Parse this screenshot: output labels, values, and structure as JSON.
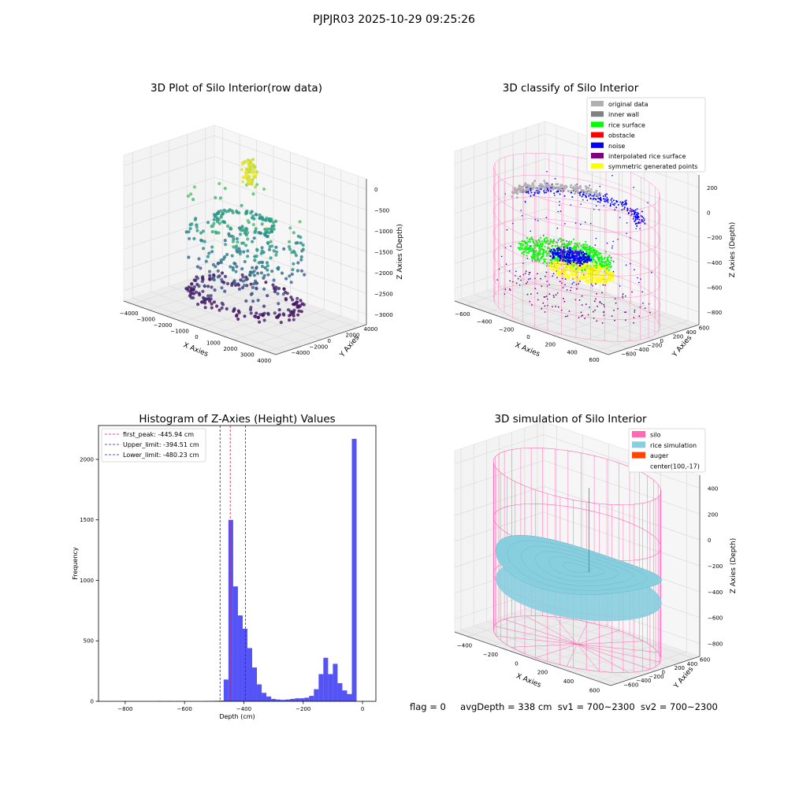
{
  "suptitle": "PJPJR03 2025-10-29 09:25:26",
  "footer": {
    "flag": "flag = 0",
    "avg_depth": "avgDepth = 338 cm",
    "sv1": "sv1 = 700~2300",
    "sv2": "sv2 = 700~2300"
  },
  "colors": {
    "hist_bar": "#4b4bf5",
    "first_peak_line": "#e8193c",
    "limit_line": "#2020d0",
    "silo": "#ff69b4",
    "rice_simulation": "#87cedf",
    "auger": "#ff4500",
    "original_data": "#b0b0b0",
    "inner_wall": "#808080",
    "rice_surface": "#00ff00",
    "obstacle": "#ff0000",
    "noise": "#0000ff",
    "interpolated_rice_surface": "#800080",
    "symmetric_generated_points": "#ffff00"
  },
  "chart_data": [
    {
      "type": "scatter",
      "title": "3D Plot of Silo Interior(row data)",
      "xlabel": "X Axies",
      "ylabel": "Y Axies",
      "zlabel": "Z Axies (Depth)",
      "x_ticks": [
        "−4000",
        "−3000",
        "−2000",
        "−1000",
        "0",
        "1000",
        "2000",
        "3000",
        "4000"
      ],
      "y_ticks": [
        "−4000",
        "−2000",
        "0",
        "2000",
        "4000"
      ],
      "z_ticks": [
        "−3000",
        "−2500",
        "−2000",
        "−1500",
        "−1000",
        "−500",
        "0"
      ],
      "xlim": [
        -4000,
        4000
      ],
      "ylim": [
        -4000,
        4000
      ],
      "zlim": [
        -3200,
        0
      ],
      "colormap": "viridis",
      "grid": true
    },
    {
      "type": "scatter",
      "title": "3D classify of Silo Interior",
      "xlabel": "X Axies",
      "ylabel": "Y Axies",
      "zlabel": "Z Axies (Depth)",
      "x_ticks": [
        "−600",
        "−400",
        "−200",
        "0",
        "200",
        "400",
        "600"
      ],
      "y_ticks": [
        "−600",
        "−400",
        "−200",
        "0",
        "200",
        "400",
        "600"
      ],
      "z_ticks": [
        "−800",
        "−600",
        "−400",
        "−200",
        "0",
        "200"
      ],
      "xlim": [
        -600,
        600
      ],
      "ylim": [
        -600,
        600
      ],
      "zlim": [
        -900,
        300
      ],
      "legend": [
        {
          "label": "original data",
          "color": "#b0b0b0"
        },
        {
          "label": "inner wall",
          "color": "#808080"
        },
        {
          "label": "rice surface",
          "color": "#00ff00"
        },
        {
          "label": "obstacle",
          "color": "#ff0000"
        },
        {
          "label": "noise",
          "color": "#0000ff"
        },
        {
          "label": "interpolated rice surface",
          "color": "#800080"
        },
        {
          "label": "symmetric generated points",
          "color": "#ffff00"
        }
      ],
      "legend_position": "top-right",
      "grid": true
    },
    {
      "type": "bar",
      "title": "Histogram of Z-Axies (Height) Values",
      "xlabel": "Depth (cm)",
      "ylabel": "Frequency",
      "xlim": [
        -890,
        45
      ],
      "ylim": [
        0,
        2280
      ],
      "x_ticks": [
        -800,
        -600,
        -400,
        -200,
        0
      ],
      "x_tick_labels": [
        "−800",
        "−600",
        "−400",
        "−200",
        "0"
      ],
      "y_ticks": [
        0,
        500,
        1000,
        1500,
        2000
      ],
      "bin_width": 16,
      "bins": [
        {
          "x": -692,
          "v": 3
        },
        {
          "x": -660,
          "v": 2
        },
        {
          "x": -628,
          "v": 2
        },
        {
          "x": -532,
          "v": 2
        },
        {
          "x": -516,
          "v": 3
        },
        {
          "x": -500,
          "v": 4
        },
        {
          "x": -484,
          "v": 6
        },
        {
          "x": -468,
          "v": 180
        },
        {
          "x": -452,
          "v": 1500
        },
        {
          "x": -436,
          "v": 950
        },
        {
          "x": -420,
          "v": 710
        },
        {
          "x": -404,
          "v": 600
        },
        {
          "x": -388,
          "v": 440
        },
        {
          "x": -372,
          "v": 280
        },
        {
          "x": -356,
          "v": 140
        },
        {
          "x": -340,
          "v": 70
        },
        {
          "x": -324,
          "v": 40
        },
        {
          "x": -308,
          "v": 20
        },
        {
          "x": -292,
          "v": 15
        },
        {
          "x": -276,
          "v": 12
        },
        {
          "x": -260,
          "v": 15
        },
        {
          "x": -244,
          "v": 20
        },
        {
          "x": -228,
          "v": 25
        },
        {
          "x": -212,
          "v": 25
        },
        {
          "x": -196,
          "v": 30
        },
        {
          "x": -180,
          "v": 45
        },
        {
          "x": -164,
          "v": 100
        },
        {
          "x": -148,
          "v": 225
        },
        {
          "x": -132,
          "v": 360
        },
        {
          "x": -116,
          "v": 225
        },
        {
          "x": -100,
          "v": 310
        },
        {
          "x": -84,
          "v": 150
        },
        {
          "x": -68,
          "v": 90
        },
        {
          "x": -52,
          "v": 60
        },
        {
          "x": -36,
          "v": 2170
        }
      ],
      "vlines": [
        {
          "label": "first_peak: -445.94 cm",
          "x": -445.94,
          "color": "#e8193c"
        },
        {
          "label": "Upper_limit: -394.51 cm",
          "x": -394.51,
          "color": "#2020d0"
        },
        {
          "label": "Lower_limit: -480.23 cm",
          "x": -480.23,
          "color": "#2020d0"
        }
      ],
      "legend_position": "top-left",
      "grid": false
    },
    {
      "type": "scatter",
      "title": "3D simulation of Silo Interior",
      "xlabel": "X Axies",
      "ylabel": "Y Axies",
      "zlabel": "Z Axies (Depth)",
      "x_ticks": [
        "−400",
        "−200",
        "0",
        "200",
        "400",
        "600"
      ],
      "y_ticks": [
        "−600",
        "−400",
        "−200",
        "0",
        "200",
        "400",
        "600"
      ],
      "z_ticks": [
        "−800",
        "−600",
        "−400",
        "−200",
        "0",
        "200",
        "400"
      ],
      "xlim": [
        -600,
        600
      ],
      "ylim": [
        -600,
        600
      ],
      "zlim": [
        -900,
        450
      ],
      "legend": [
        {
          "label": "silo",
          "color": "#ff69b4"
        },
        {
          "label": "rice simulation",
          "color": "#87cedf"
        },
        {
          "label": "auger",
          "color": "#ff4500"
        },
        {
          "label": "center(100,-17)",
          "color": ""
        }
      ],
      "legend_position": "top-right",
      "grid": true
    }
  ]
}
